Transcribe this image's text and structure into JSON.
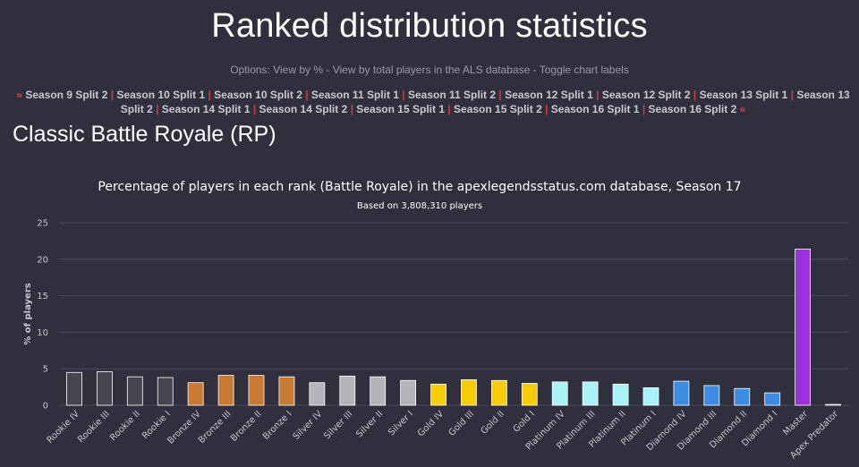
{
  "header": {
    "title": "Ranked distribution statistics",
    "options_text": "Options: View by % - View by total players in the ALS database - Toggle chart labels"
  },
  "seasons": {
    "left_arrow": "»",
    "right_arrow": "«",
    "items": [
      "Season 9 Split 2",
      "Season 10 Split 1",
      "Season 10 Split 2",
      "Season 11 Split 1",
      "Season 11 Split 2",
      "Season 12 Split 1",
      "Season 12 Split 2",
      "Season 13 Split 1",
      "Season 13 Split 2",
      "Season 14 Split 1",
      "Season 14 Split 2",
      "Season 15 Split 1",
      "Season 15 Split 2",
      "Season 16 Split 1",
      "Season 16 Split 2"
    ]
  },
  "section": {
    "title": "Classic Battle Royale (RP)"
  },
  "colors": {
    "background": "#2f2f3d",
    "grid": "#4a4a5a",
    "rookie": "#45464f",
    "bronze": "#c87a34",
    "silver": "#b4b4bb",
    "gold": "#f5cc05",
    "platinum": "#a9f2f8",
    "diamond": "#3d8ce4",
    "master": "#9b32dc",
    "predator": "#ff5050"
  },
  "chart_data": {
    "type": "bar",
    "title": "Percentage of players in each rank (Battle Royale) in the apexlegendsstatus.com database, Season 17",
    "subtitle": "Based on 3,808,310 players",
    "ylabel": "% of players",
    "xlabel": "",
    "ylim": [
      0,
      25
    ],
    "yticks": [
      0,
      5,
      10,
      15,
      20,
      25
    ],
    "grid": true,
    "categories": [
      "Rookie IV",
      "Rookie III",
      "Rookie II",
      "Rookie I",
      "Bronze IV",
      "Bronze III",
      "Bronze II",
      "Bronze I",
      "Silver IV",
      "Silver III",
      "Silver II",
      "Silver I",
      "Gold IV",
      "Gold III",
      "Gold II",
      "Gold I",
      "Platinum IV",
      "Platinum III",
      "Platinum II",
      "Platinum I",
      "Diamond IV",
      "Diamond III",
      "Diamond II",
      "Diamond I",
      "Master",
      "Apex Predator"
    ],
    "values": [
      4.5,
      4.6,
      3.9,
      3.8,
      3.1,
      4.1,
      4.1,
      3.9,
      3.1,
      4.0,
      3.9,
      3.4,
      2.9,
      3.5,
      3.4,
      3.0,
      3.2,
      3.2,
      2.9,
      2.4,
      3.3,
      2.7,
      2.3,
      1.7,
      21.4,
      0.05
    ],
    "bar_colors": [
      "rookie",
      "rookie",
      "rookie",
      "rookie",
      "bronze",
      "bronze",
      "bronze",
      "bronze",
      "silver",
      "silver",
      "silver",
      "silver",
      "gold",
      "gold",
      "gold",
      "gold",
      "platinum",
      "platinum",
      "platinum",
      "platinum",
      "diamond",
      "diamond",
      "diamond",
      "diamond",
      "master",
      "predator"
    ]
  }
}
